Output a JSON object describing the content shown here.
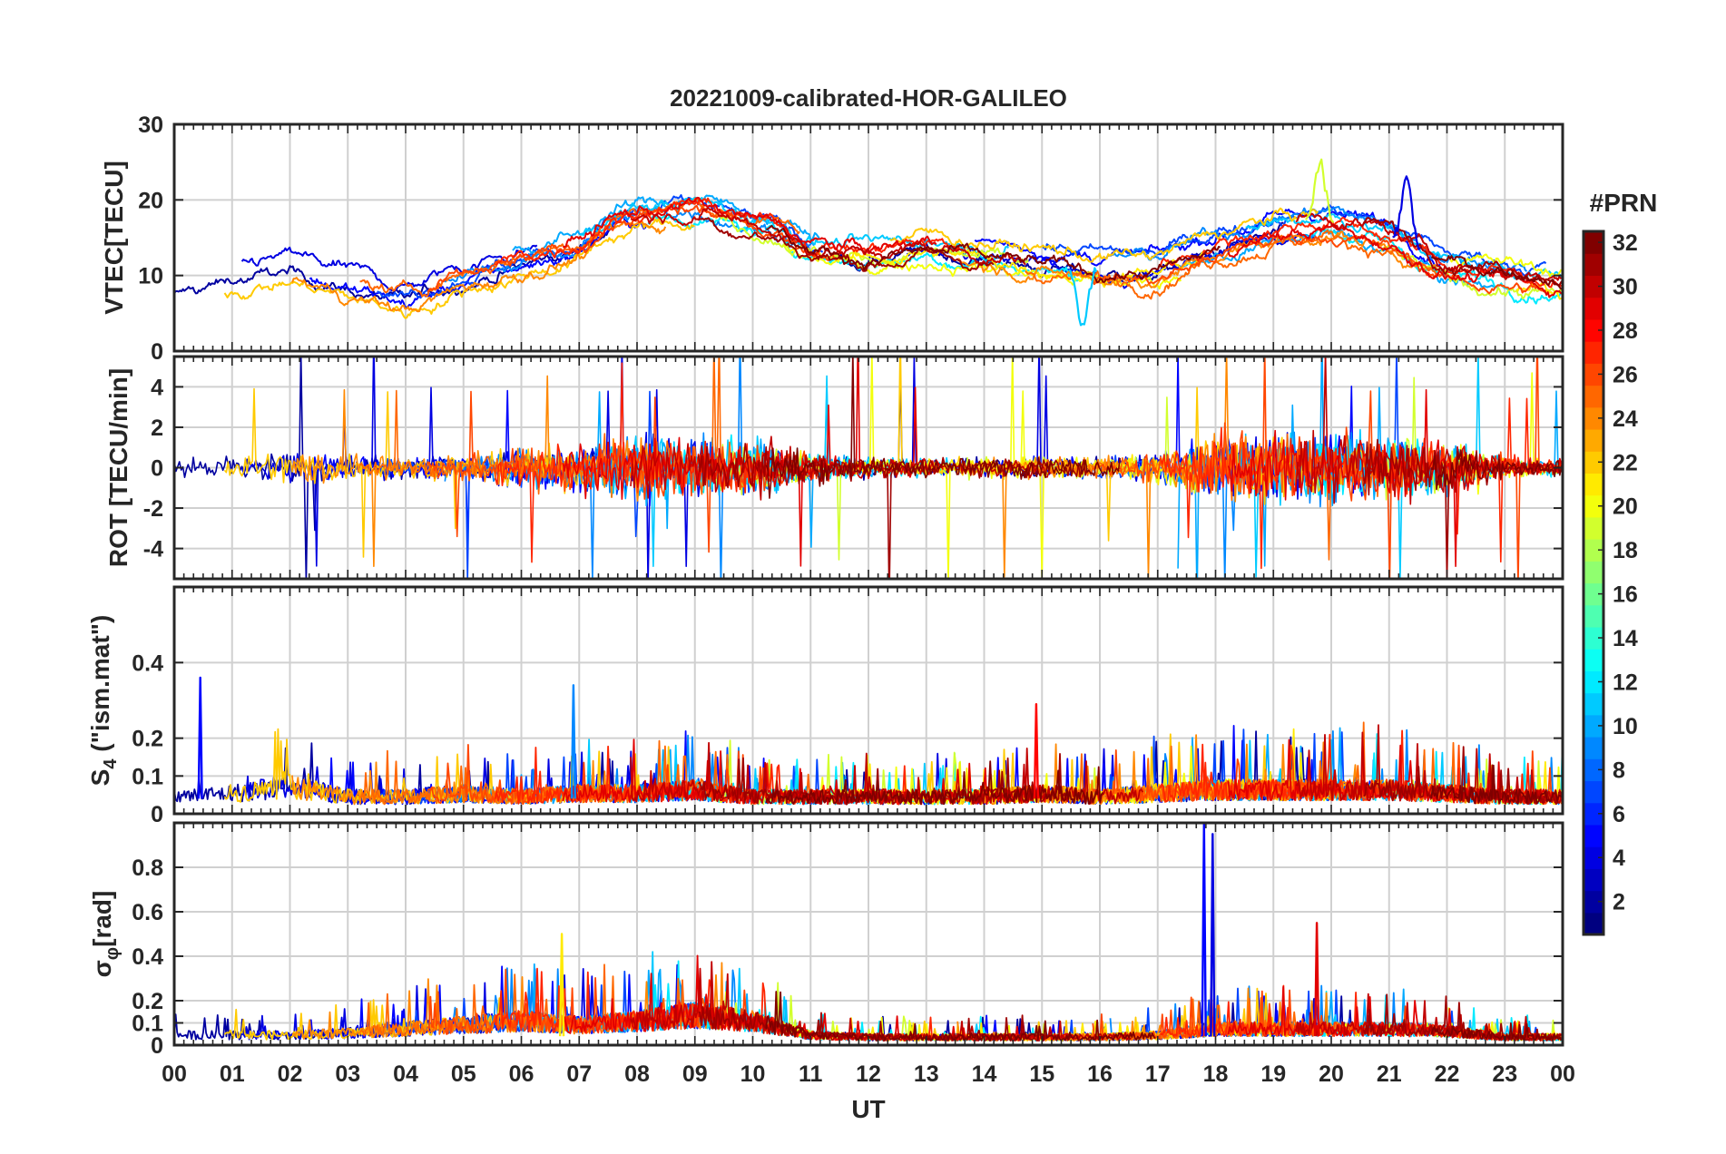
{
  "chart_data": {
    "type": "line",
    "title": "20221009-calibrated-HOR-GALILEO",
    "xlabel": "UT",
    "x_tick_labels": [
      "00",
      "01",
      "02",
      "03",
      "04",
      "05",
      "06",
      "07",
      "08",
      "09",
      "10",
      "11",
      "12",
      "13",
      "14",
      "15",
      "16",
      "17",
      "18",
      "19",
      "20",
      "21",
      "22",
      "23",
      "00"
    ],
    "xlim": [
      0,
      24
    ],
    "colorbar": {
      "label": "#PRN",
      "range": [
        1,
        32
      ],
      "tick_labels": [
        "2",
        "4",
        "6",
        "8",
        "10",
        "12",
        "14",
        "16",
        "18",
        "20",
        "22",
        "24",
        "26",
        "28",
        "30",
        "32"
      ],
      "colormap": "jet"
    },
    "series_prns": [
      2,
      4,
      5,
      7,
      9,
      10,
      11,
      12,
      19,
      20,
      21,
      22,
      24,
      25,
      26,
      27,
      29,
      30,
      31,
      32
    ],
    "panels": [
      {
        "id": "vtec",
        "ylabel": "VTEC[TECU]",
        "ylim": [
          0,
          30
        ],
        "y_tick_labels": [
          "0",
          "10",
          "20",
          "30"
        ],
        "profile_x": [
          0,
          1,
          2,
          3,
          4,
          5,
          6,
          7,
          7.5,
          8,
          8.5,
          9,
          9.5,
          10,
          10.5,
          11,
          12,
          13,
          14,
          15,
          16,
          17,
          18,
          19,
          20,
          21,
          22,
          23,
          24
        ],
        "profile_y": [
          8,
          10,
          11,
          9,
          7,
          10,
          12,
          14,
          17,
          18,
          18.5,
          19,
          18,
          17,
          16,
          14,
          13,
          14,
          13,
          12,
          11,
          11,
          14,
          16,
          17,
          15,
          11,
          10,
          9
        ],
        "noise_amplitude": 2.5
      },
      {
        "id": "rot",
        "ylabel": "ROT [TECU/min]",
        "ylim": [
          -5.5,
          5.5
        ],
        "y_tick_labels": [
          "-4",
          "-2",
          "0",
          "2",
          "4"
        ],
        "envelope_x": [
          0,
          1,
          2,
          3,
          4,
          5,
          6,
          7,
          8,
          9,
          10,
          11,
          12,
          13,
          14,
          15,
          16,
          17,
          18,
          19,
          20,
          21,
          22,
          23,
          24
        ],
        "envelope_y": [
          0.8,
          1.2,
          1.5,
          1.2,
          0.8,
          1.0,
          1.6,
          2.0,
          2.6,
          2.2,
          2.2,
          1.4,
          0.8,
          0.8,
          0.8,
          0.9,
          0.8,
          1.2,
          2.6,
          2.8,
          2.8,
          2.6,
          2.2,
          0.9,
          0.6
        ]
      },
      {
        "id": "s4",
        "ylabel": "S4 (\"ism.mat\")",
        "ylabel_main": "S",
        "ylabel_sub": "4",
        "ylabel_rest": " (\"ism.mat\")",
        "ylim": [
          0,
          0.6
        ],
        "y_tick_labels": [
          "0",
          "0.1",
          "0.2",
          "0.4"
        ],
        "y_ticks": [
          0,
          0.1,
          0.2,
          0.4
        ],
        "baseline_x": [
          0,
          1,
          2,
          3,
          4,
          5,
          6,
          7,
          8,
          9,
          10,
          11,
          12,
          13,
          14,
          15,
          16,
          17,
          18,
          19,
          20,
          21,
          22,
          23,
          24
        ],
        "baseline_y": [
          0.05,
          0.06,
          0.08,
          0.05,
          0.05,
          0.06,
          0.05,
          0.06,
          0.06,
          0.07,
          0.05,
          0.05,
          0.05,
          0.05,
          0.05,
          0.06,
          0.05,
          0.06,
          0.07,
          0.07,
          0.07,
          0.07,
          0.06,
          0.05,
          0.05
        ]
      },
      {
        "id": "sigma_phi",
        "ylabel": "σφ[rad]",
        "ylabel_main": "σ",
        "ylabel_sub": "φ",
        "ylabel_rest": "[rad]",
        "ylim": [
          0,
          1.0
        ],
        "y_tick_labels": [
          "0",
          "0.1",
          "0.2",
          "0.4",
          "0.6",
          "0.8"
        ],
        "y_ticks": [
          0,
          0.1,
          0.2,
          0.4,
          0.6,
          0.8
        ],
        "baseline_x": [
          0,
          1,
          2,
          3,
          4,
          5,
          6,
          7,
          8,
          9,
          10,
          11,
          12,
          13,
          14,
          15,
          16,
          17,
          18,
          19,
          20,
          21,
          22,
          23,
          24
        ],
        "baseline_y": [
          0.05,
          0.05,
          0.05,
          0.06,
          0.08,
          0.1,
          0.12,
          0.1,
          0.12,
          0.15,
          0.12,
          0.05,
          0.04,
          0.04,
          0.04,
          0.04,
          0.04,
          0.05,
          0.08,
          0.08,
          0.08,
          0.08,
          0.07,
          0.04,
          0.04
        ]
      }
    ],
    "highlights": [
      {
        "panel": "sigma_phi",
        "prn": 5,
        "x": 17.8,
        "y": 1.0
      },
      {
        "panel": "sigma_phi",
        "prn": 4,
        "x": 17.95,
        "y": 0.95
      },
      {
        "panel": "sigma_phi",
        "prn": 29,
        "x": 19.75,
        "y": 0.55
      },
      {
        "panel": "sigma_phi",
        "prn": 21,
        "x": 6.7,
        "y": 0.5
      },
      {
        "panel": "s4",
        "prn": 9,
        "x": 6.9,
        "y": 0.34
      },
      {
        "panel": "s4",
        "prn": 5,
        "x": 0.45,
        "y": 0.36
      },
      {
        "panel": "s4",
        "prn": 28,
        "x": 14.9,
        "y": 0.29
      },
      {
        "panel": "vtec",
        "prn": 19,
        "x": 19.8,
        "y": 25
      },
      {
        "panel": "vtec",
        "prn": 4,
        "x": 21.3,
        "y": 23
      },
      {
        "panel": "vtec",
        "prn": 11,
        "x": 15.7,
        "y": 3
      }
    ]
  }
}
